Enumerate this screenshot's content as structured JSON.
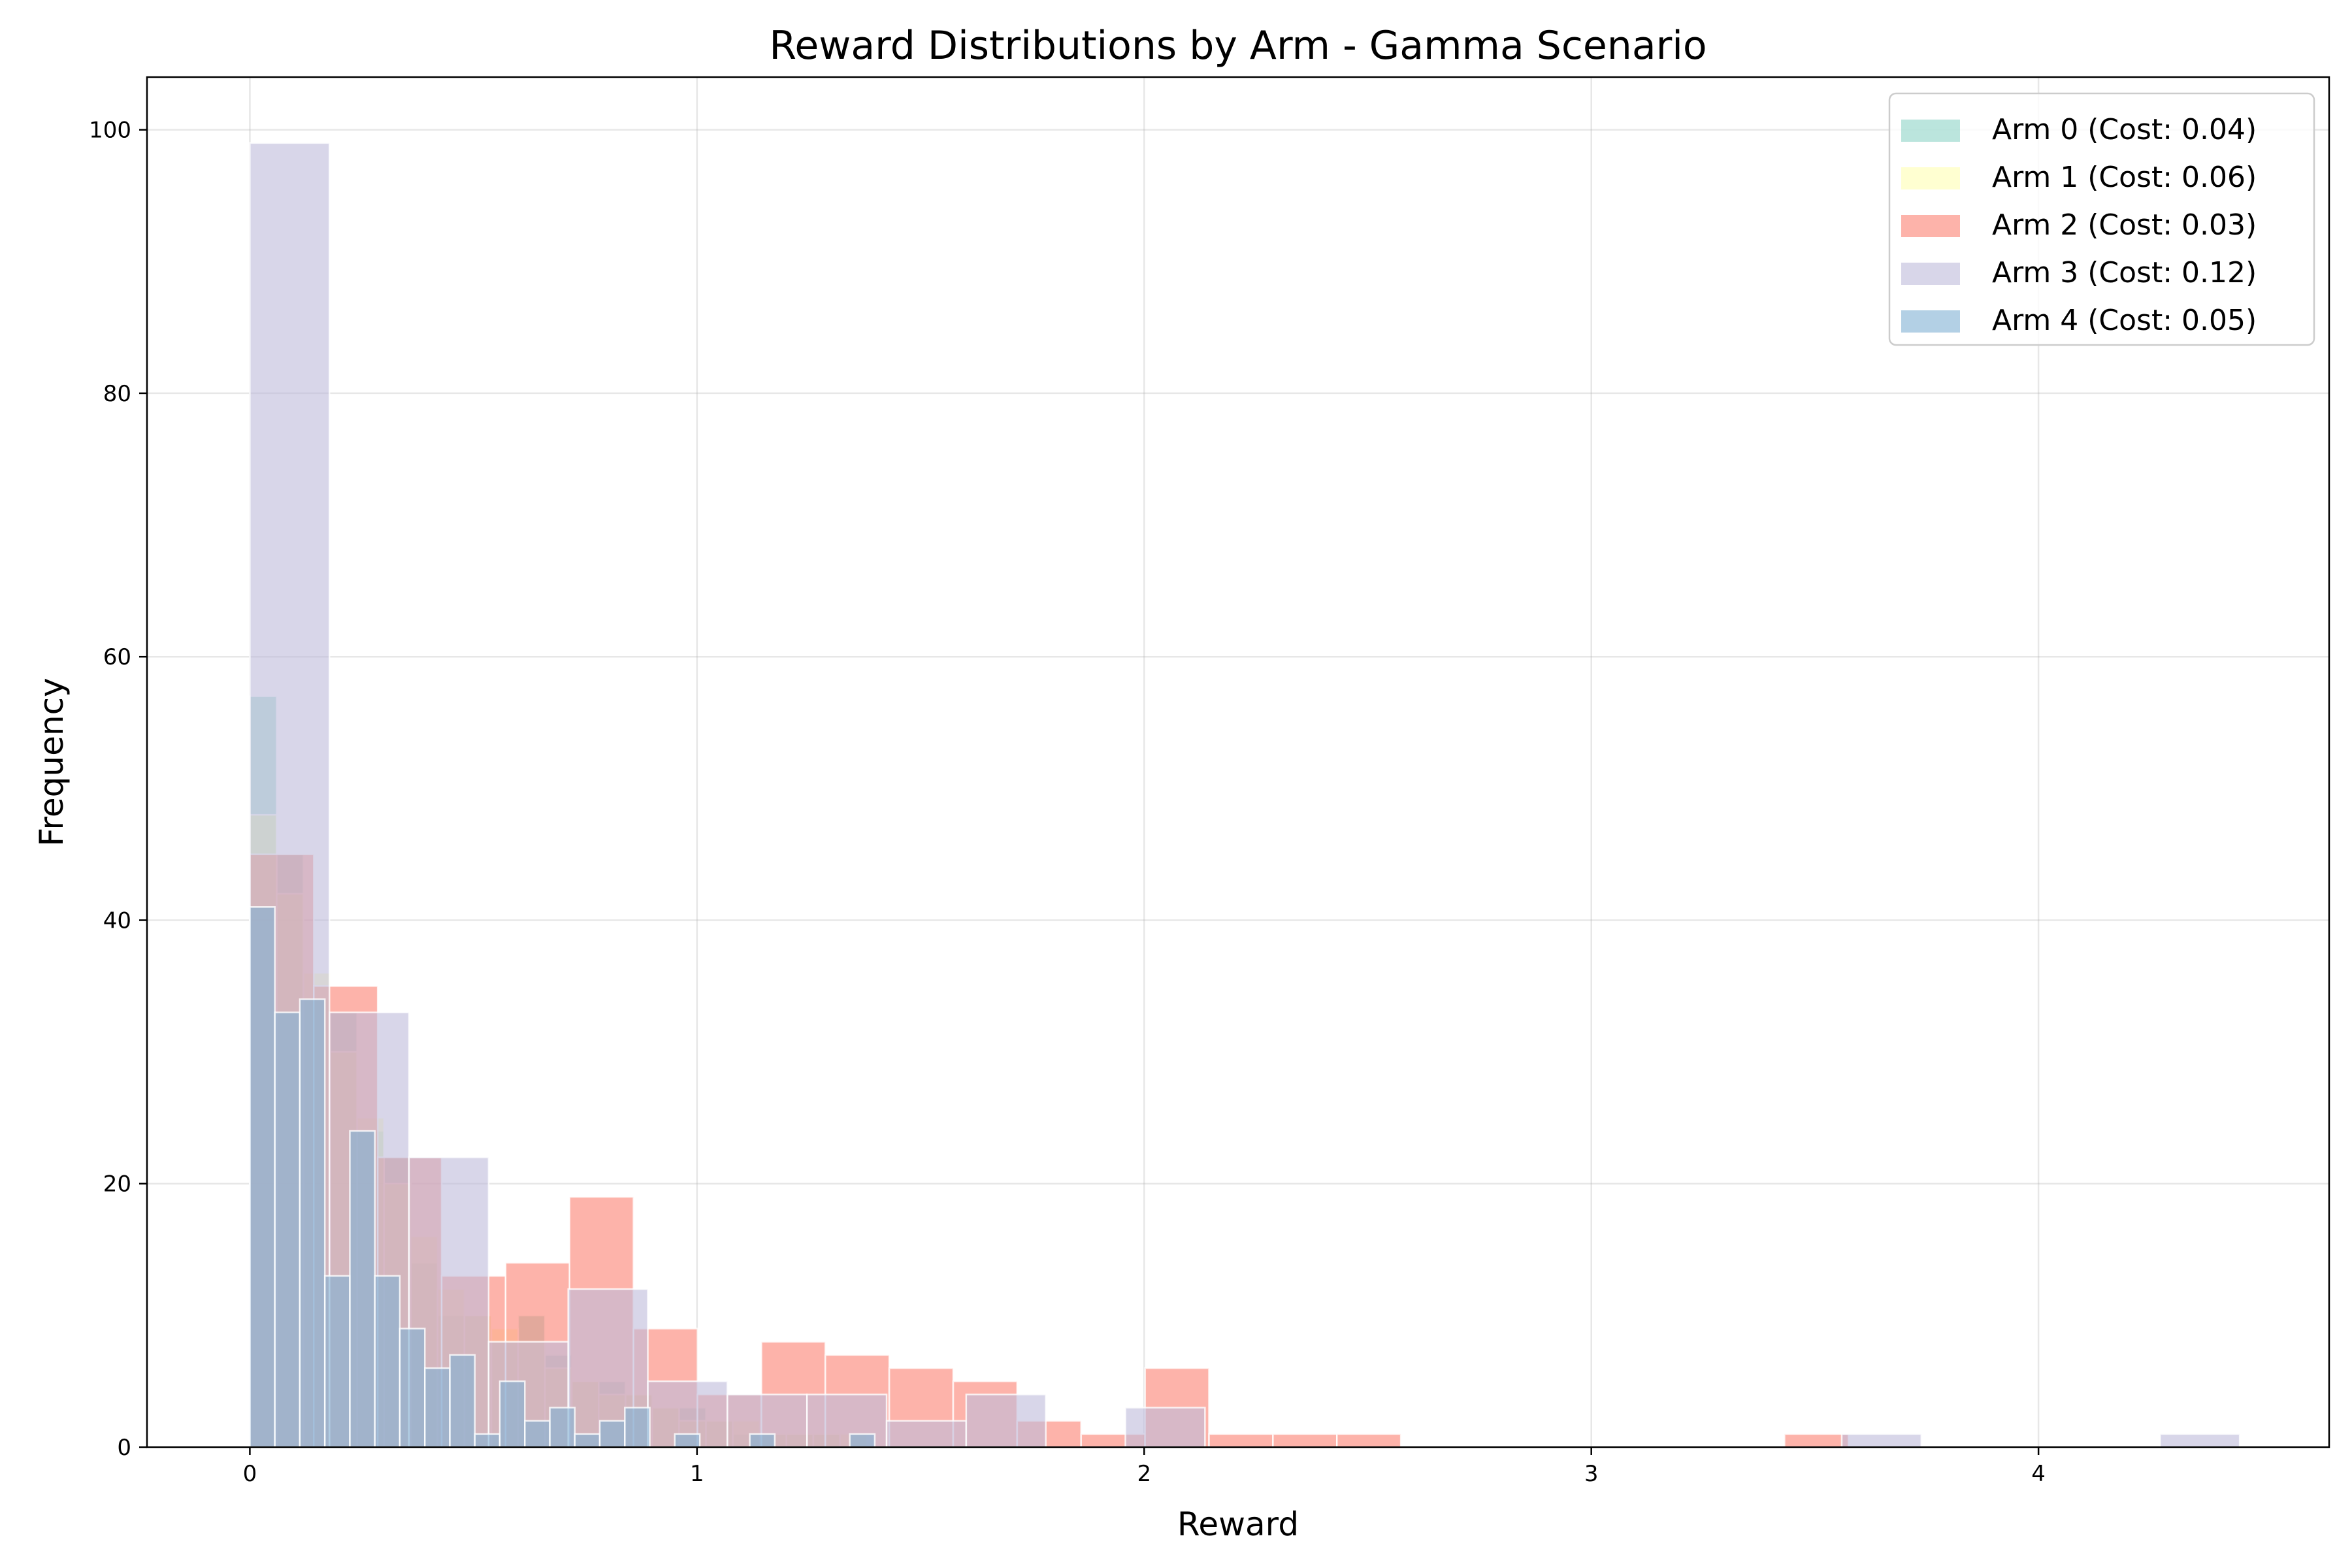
{
  "chart_data": {
    "type": "bar",
    "title": "Reward Distributions by Arm - Gamma Scenario",
    "xlabel": "Reward",
    "ylabel": "Frequency",
    "xlim": [
      -0.23,
      4.65
    ],
    "ylim": [
      0,
      104
    ],
    "xticks": [
      0,
      1,
      2,
      3,
      4
    ],
    "yticks": [
      0,
      20,
      40,
      60,
      80,
      100
    ],
    "grid": true,
    "legend_position": "top-right",
    "series": [
      {
        "name": "Arm 0 (Cost: 0.04)",
        "color": "#8dd3c7",
        "bin_width": 0.06,
        "bin_start": 0.0,
        "counts": [
          57,
          45,
          34,
          33,
          24,
          22,
          14,
          10,
          10,
          8,
          10,
          7,
          5,
          5,
          4,
          3,
          3,
          2,
          1,
          1,
          1,
          1
        ]
      },
      {
        "name": "Arm 1 (Cost: 0.06)",
        "color": "#ffffb3",
        "bin_width": 0.06,
        "bin_start": 0.0,
        "counts": [
          48,
          42,
          36,
          30,
          25,
          20,
          16,
          12,
          10,
          9,
          8,
          6,
          5,
          4,
          4,
          3,
          2,
          2,
          2,
          1,
          1,
          1,
          1,
          0,
          0,
          0,
          0,
          0,
          0,
          0,
          0,
          0,
          0,
          0,
          0,
          0,
          0,
          0,
          0,
          0,
          0,
          0,
          0,
          0,
          0,
          0,
          0,
          0,
          0,
          0,
          0,
          0,
          0,
          0,
          0,
          0,
          0,
          0,
          0,
          0,
          0,
          0,
          0,
          0,
          0,
          0,
          0,
          0,
          0,
          0,
          0,
          0,
          0,
          0,
          0,
          0,
          0,
          0,
          0,
          0,
          0,
          0,
          0,
          0,
          0,
          0,
          0,
          0,
          0,
          0,
          0,
          0,
          0,
          0,
          0,
          0,
          0,
          0,
          0,
          0
        ]
      },
      {
        "name": "Arm 2 (Cost: 0.03)",
        "color": "#fb8072",
        "bin_width": 0.143,
        "bin_start": 0.0,
        "counts": [
          45,
          35,
          22,
          13,
          14,
          19,
          9,
          4,
          8,
          7,
          6,
          5,
          2,
          1,
          6,
          1,
          1,
          1,
          0,
          0,
          0,
          0,
          0,
          0,
          1
        ]
      },
      {
        "name": "Arm 3 (Cost: 0.12)",
        "color": "#bebada",
        "bin_width": 0.178,
        "bin_start": 0.0,
        "counts": [
          99,
          33,
          22,
          8,
          12,
          5,
          4,
          4,
          2,
          4,
          0,
          3,
          0,
          0,
          0,
          0,
          0,
          0,
          0,
          0,
          1,
          0,
          0,
          0,
          1
        ]
      },
      {
        "name": "Arm 4 (Cost: 0.05)",
        "color": "#80b1d3",
        "bin_width": 0.0559,
        "bin_start": 0.0,
        "counts": [
          41,
          33,
          34,
          13,
          24,
          13,
          9,
          6,
          7,
          1,
          5,
          2,
          3,
          1,
          2,
          3,
          0,
          1,
          0,
          0,
          1,
          0,
          0,
          0,
          1
        ]
      }
    ]
  }
}
